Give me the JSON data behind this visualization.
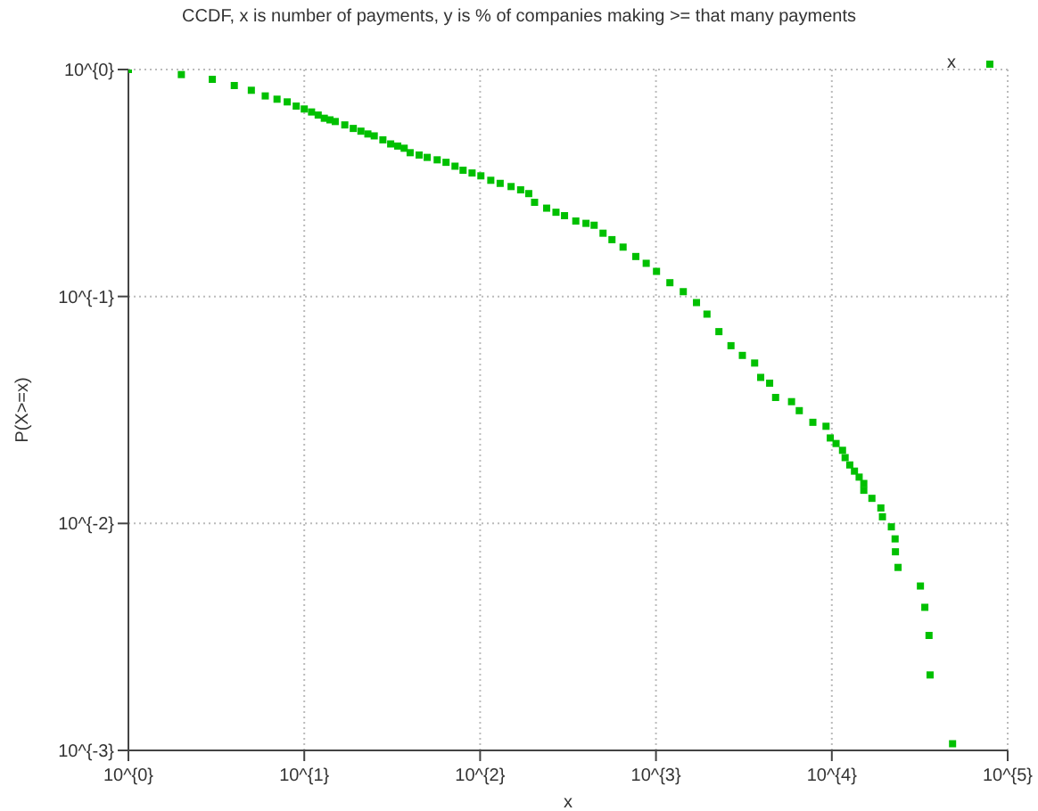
{
  "chart_data": {
    "type": "scatter",
    "title": "CCDF, x is number of payments, y is % of companies making >= that many payments",
    "xlabel": "x",
    "ylabel": "P(X>=x)",
    "log": "xy",
    "grid": true,
    "legend": "top right",
    "marker": "square",
    "xlim": [
      1,
      100000
    ],
    "ylim": [
      0.001,
      1
    ],
    "xticks": [
      {
        "value": 1,
        "label": "10^{0}"
      },
      {
        "value": 10,
        "label": "10^{1}"
      },
      {
        "value": 100,
        "label": "10^{2}"
      },
      {
        "value": 1000,
        "label": "10^{3}"
      },
      {
        "value": 10000,
        "label": "10^{4}"
      },
      {
        "value": 100000,
        "label": "10^{5}"
      }
    ],
    "yticks": [
      {
        "value": 0.001,
        "label": "10^{-3}"
      },
      {
        "value": 0.01,
        "label": "10^{-2}"
      },
      {
        "value": 0.1,
        "label": "10^{-1}"
      },
      {
        "value": 1,
        "label": "10^{0}"
      }
    ],
    "series": [
      {
        "name": "x",
        "color": "#00c000",
        "x": [
          1,
          2,
          3,
          4,
          5,
          6,
          7,
          8,
          9,
          10,
          11,
          12,
          13,
          14,
          15,
          17,
          19,
          21,
          23,
          25,
          28,
          31,
          34,
          37,
          40,
          45,
          50,
          57,
          64,
          72,
          80,
          90,
          101,
          115,
          130,
          150,
          170,
          189,
          204,
          239,
          270,
          302,
          350,
          400,
          445,
          500,
          562,
          650,
          768,
          880,
          1007,
          1200,
          1430,
          1700,
          1950,
          2280,
          2670,
          3100,
          3640,
          3940,
          4430,
          4790,
          5900,
          6530,
          7800,
          9270,
          9800,
          10570,
          11500,
          11900,
          12650,
          13450,
          14300,
          15200,
          15200,
          16900,
          19000,
          19400,
          21800,
          22900,
          23000,
          23800,
          31900,
          33800,
          35700,
          36200,
          48600
        ],
        "values": [
          1,
          0.95,
          0.905,
          0.85,
          0.81,
          0.765,
          0.74,
          0.72,
          0.69,
          0.67,
          0.65,
          0.63,
          0.61,
          0.6,
          0.59,
          0.57,
          0.55,
          0.535,
          0.52,
          0.51,
          0.49,
          0.47,
          0.46,
          0.45,
          0.43,
          0.42,
          0.41,
          0.4,
          0.39,
          0.375,
          0.36,
          0.35,
          0.34,
          0.325,
          0.315,
          0.305,
          0.295,
          0.284,
          0.26,
          0.245,
          0.235,
          0.227,
          0.215,
          0.21,
          0.206,
          0.19,
          0.178,
          0.165,
          0.15,
          0.14,
          0.129,
          0.115,
          0.105,
          0.094,
          0.0836,
          0.07,
          0.0607,
          0.055,
          0.0509,
          0.044,
          0.0415,
          0.0359,
          0.0344,
          0.0314,
          0.0279,
          0.0268,
          0.0238,
          0.0225,
          0.021,
          0.0195,
          0.0181,
          0.017,
          0.016,
          0.015,
          0.014,
          0.0129,
          0.0117,
          0.0107,
          0.00966,
          0.00855,
          0.0075,
          0.0064,
          0.0053,
          0.00427,
          0.00321,
          0.00215,
          0.00107
        ]
      }
    ]
  }
}
